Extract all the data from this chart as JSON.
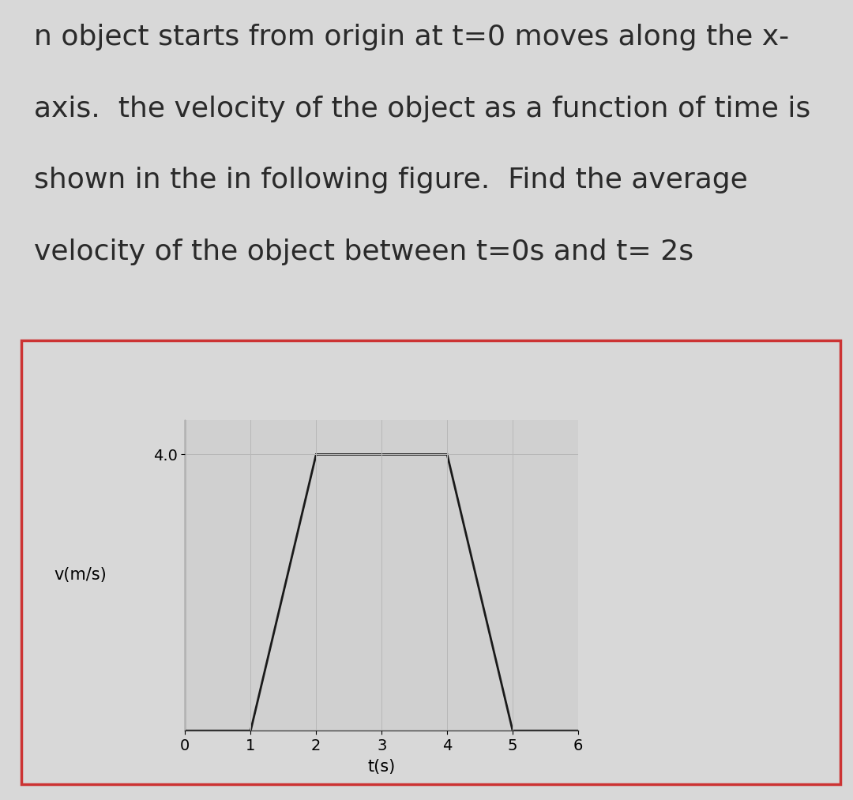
{
  "description_lines": [
    "n object starts from origin at t=0 moves along the x-",
    "axis.  the velocity of the object as a function of time is",
    "shown in the in following figure.  Find the average",
    "velocity of the object between t=0s and t= 2s"
  ],
  "plot_t": [
    0,
    1,
    2,
    4,
    5,
    6
  ],
  "plot_v": [
    0,
    0,
    4.0,
    4.0,
    0,
    0
  ],
  "xlim": [
    0,
    6
  ],
  "ylim": [
    0,
    4.5
  ],
  "xticks": [
    0,
    1,
    2,
    3,
    4,
    5,
    6
  ],
  "ytick_label": "4.0",
  "ytick_val": 4.0,
  "xlabel": "t(s)",
  "ylabel": "v(m/s)",
  "line_color": "#1a1a1a",
  "line_width": 2.0,
  "grid_color": "#b8b8b8",
  "grid_linewidth": 0.7,
  "plot_bg_color": "#d0d0d0",
  "outer_bg": "#d8d8d8",
  "box_bg": "#cccccc",
  "border_color": "#cc3333",
  "text_color": "#2a2a2a",
  "desc_fontsize": 26,
  "axis_label_fontsize": 15,
  "tick_fontsize": 14,
  "fig_width": 10.8,
  "fig_height": 10.13
}
